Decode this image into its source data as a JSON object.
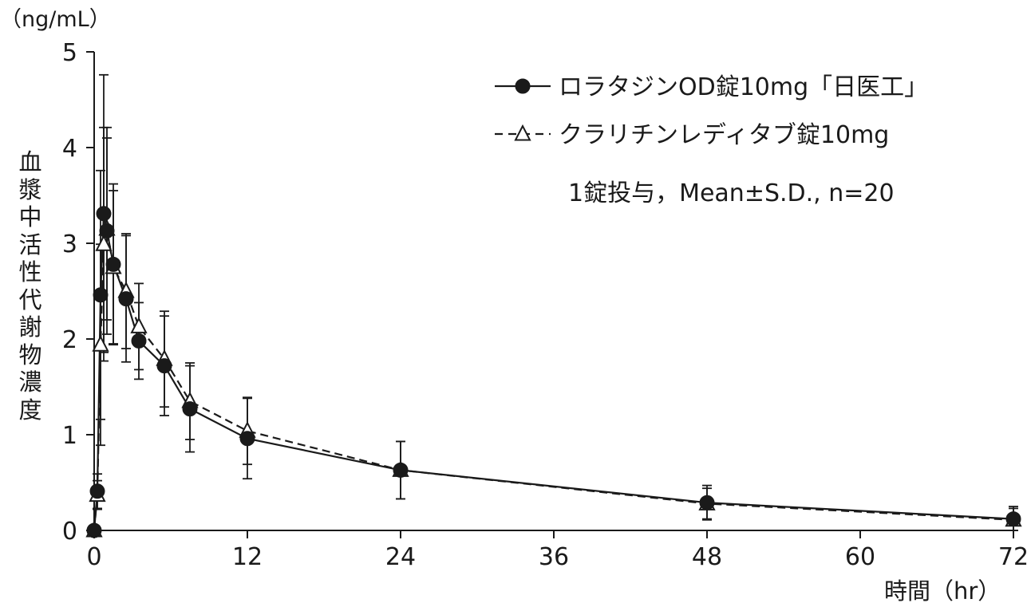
{
  "chart_data": {
    "type": "line",
    "y_unit_label": "（ng/mL）",
    "ylabel_chars": [
      "血",
      "漿",
      "中",
      "活",
      "性",
      "代",
      "謝",
      "物",
      "濃",
      "度"
    ],
    "xlabel": "時間（hr）",
    "x_ticks": [
      0,
      12,
      24,
      36,
      48,
      60,
      72
    ],
    "y_ticks": [
      0,
      1,
      2,
      3,
      4,
      5
    ],
    "xlim": [
      0,
      72
    ],
    "ylim": [
      0,
      5
    ],
    "grid": false,
    "legend_position": "top-right",
    "annotation": "1錠投与，Mean±S.D., n=20",
    "series": [
      {
        "name": "ロラタジンOD錠10mg「日医工」",
        "marker": "filled-circle",
        "line": "solid",
        "x": [
          0,
          0.25,
          0.5,
          0.75,
          1,
          1.5,
          2.5,
          3.5,
          5.5,
          7.5,
          12,
          24,
          48,
          72
        ],
        "y": [
          0.0,
          0.41,
          2.46,
          3.31,
          3.13,
          2.78,
          2.42,
          1.98,
          1.72,
          1.27,
          0.96,
          0.63,
          0.29,
          0.12
        ],
        "sd": [
          0.0,
          0.18,
          1.3,
          1.45,
          1.08,
          0.84,
          0.66,
          0.4,
          0.52,
          0.45,
          0.42,
          0.3,
          0.18,
          0.13
        ]
      },
      {
        "name": "クラリチンレディタブ錠10mg",
        "marker": "open-triangle",
        "line": "dashed",
        "x": [
          0,
          0.25,
          0.5,
          0.75,
          1,
          1.5,
          2.5,
          3.5,
          5.5,
          7.5,
          12,
          24,
          48,
          72
        ],
        "y": [
          0.0,
          0.37,
          1.94,
          2.99,
          3.15,
          2.75,
          2.5,
          2.13,
          1.79,
          1.35,
          1.04,
          0.63,
          0.28,
          0.11
        ],
        "sd": [
          0.0,
          0.15,
          1.05,
          1.22,
          0.95,
          0.8,
          0.6,
          0.45,
          0.5,
          0.4,
          0.35,
          0.3,
          0.16,
          0.12
        ]
      }
    ]
  }
}
